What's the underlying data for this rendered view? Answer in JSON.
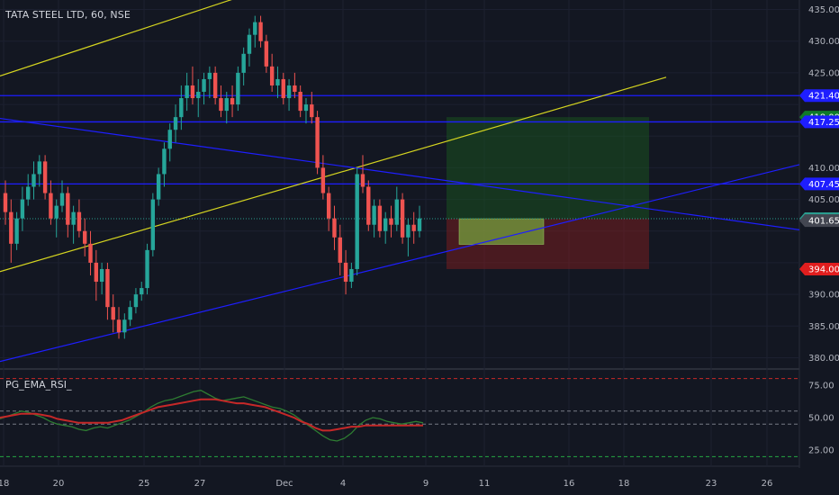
{
  "header": {
    "title": "TATA STEEL LTD, 60, NSE"
  },
  "indicator": {
    "title": "PG_EMA_RSI_"
  },
  "chart_data": {
    "type": "candlestick",
    "symbol": "TATA STEEL LTD",
    "interval": "60",
    "exchange": "NSE",
    "price_axis": {
      "ticks": [
        "435.00",
        "430.00",
        "425.00",
        "410.00",
        "405.00",
        "390.00",
        "385.00",
        "380.00"
      ],
      "range": [
        378.5,
        436.5
      ]
    },
    "price_tags": [
      {
        "label": "421.40",
        "value": 421.4,
        "bg": "#1e1eff",
        "fg": "#ffffff"
      },
      {
        "label": "418.00",
        "value": 418.0,
        "bg": "#0f7a2a",
        "fg": "#ffffff"
      },
      {
        "label": "417.25",
        "value": 417.25,
        "bg": "#1e1eff",
        "fg": "#ffffff"
      },
      {
        "label": "407.45",
        "value": 407.45,
        "bg": "#1e1eff",
        "fg": "#ffffff"
      },
      {
        "label": "401.95",
        "value": 401.95,
        "bg": "#2a9d8f",
        "fg": "#ffffff"
      },
      {
        "label": "401.65",
        "value": 401.65,
        "bg": "#434651",
        "fg": "#ffffff"
      },
      {
        "label": "394.00",
        "value": 394.0,
        "bg": "#e01e1e",
        "fg": "#ffffff"
      }
    ],
    "date_axis": {
      "ticks": [
        "18",
        "20",
        "25",
        "27",
        "Dec",
        "4",
        "9",
        "11",
        "16",
        "18",
        "23",
        "26"
      ]
    },
    "horizontal_lines": [
      421.4,
      417.25,
      407.45
    ],
    "current_price": 401.95,
    "position": {
      "entry": 401.95,
      "target": 418.0,
      "stop": 394.0
    },
    "indicator_axis": {
      "ticks": [
        "75.00",
        "50.00",
        "25.00"
      ],
      "range": [
        14,
        86
      ]
    },
    "indicator_levels": [
      {
        "value": 80,
        "color": "#c62828"
      },
      {
        "value": 55,
        "color": "#787b86"
      },
      {
        "value": 45,
        "color": "#787b86"
      },
      {
        "value": 20,
        "color": "#26a642"
      }
    ],
    "colors": {
      "up": "#26a69a",
      "down": "#ef5350",
      "rsi": "#2e7d32",
      "ema": "#c62828",
      "trend": "#1e1eff",
      "channel": "#d4d420"
    },
    "candles": [
      [
        406,
        408,
        401,
        403
      ],
      [
        403,
        405,
        395,
        398
      ],
      [
        398,
        403,
        397,
        402
      ],
      [
        402,
        407,
        400,
        405
      ],
      [
        405,
        409,
        404,
        407
      ],
      [
        407,
        411,
        405,
        409
      ],
      [
        409,
        412,
        407,
        411
      ],
      [
        411,
        412,
        405,
        406
      ],
      [
        406,
        408,
        401,
        402
      ],
      [
        402,
        405,
        399,
        404
      ],
      [
        404,
        408,
        403,
        406
      ],
      [
        406,
        407,
        399,
        401
      ],
      [
        401,
        404,
        398,
        403
      ],
      [
        403,
        405,
        399,
        400
      ],
      [
        400,
        402,
        396,
        398
      ],
      [
        398,
        400,
        393,
        395
      ],
      [
        395,
        397,
        389,
        392
      ],
      [
        392,
        395,
        390,
        394
      ],
      [
        394,
        395,
        386,
        388
      ],
      [
        388,
        390,
        384,
        386
      ],
      [
        386,
        388,
        383,
        384
      ],
      [
        384,
        387,
        383,
        386
      ],
      [
        386,
        389,
        385,
        388
      ],
      [
        388,
        391,
        387,
        390
      ],
      [
        390,
        392,
        389,
        391
      ],
      [
        391,
        398,
        390,
        397
      ],
      [
        397,
        406,
        396,
        405
      ],
      [
        405,
        410,
        404,
        409
      ],
      [
        409,
        414,
        407,
        413
      ],
      [
        413,
        417,
        411,
        416
      ],
      [
        416,
        420,
        414,
        418
      ],
      [
        418,
        423,
        416,
        421
      ],
      [
        421,
        425,
        419,
        423
      ],
      [
        423,
        426,
        420,
        421
      ],
      [
        421,
        424,
        418,
        422
      ],
      [
        422,
        425,
        420,
        424
      ],
      [
        424,
        426,
        421,
        425
      ],
      [
        425,
        426,
        420,
        421
      ],
      [
        421,
        423,
        418,
        419
      ],
      [
        419,
        422,
        417,
        421
      ],
      [
        421,
        423,
        418,
        420
      ],
      [
        420,
        426,
        419,
        425
      ],
      [
        425,
        429,
        423,
        428
      ],
      [
        428,
        432,
        426,
        431
      ],
      [
        431,
        434,
        429,
        433
      ],
      [
        433,
        434,
        429,
        430
      ],
      [
        430,
        431,
        425,
        426
      ],
      [
        426,
        428,
        422,
        423
      ],
      [
        423,
        426,
        421,
        424
      ],
      [
        424,
        425,
        420,
        421
      ],
      [
        421,
        424,
        419,
        423
      ],
      [
        423,
        425,
        421,
        422
      ],
      [
        422,
        423,
        418,
        419
      ],
      [
        419,
        421,
        417,
        420
      ],
      [
        420,
        422,
        417,
        418
      ],
      [
        418,
        419,
        409,
        410
      ],
      [
        410,
        412,
        405,
        406
      ],
      [
        406,
        407,
        400,
        402
      ],
      [
        402,
        404,
        397,
        399
      ],
      [
        399,
        401,
        393,
        395
      ],
      [
        395,
        397,
        390,
        392
      ],
      [
        392,
        395,
        391,
        394
      ],
      [
        394,
        410,
        393,
        409
      ],
      [
        409,
        412,
        406,
        407
      ],
      [
        407,
        408,
        400,
        401
      ],
      [
        401,
        405,
        399,
        404
      ],
      [
        404,
        405,
        399,
        400
      ],
      [
        400,
        403,
        398,
        402
      ],
      [
        402,
        404,
        399,
        401
      ],
      [
        401,
        407,
        400,
        405
      ],
      [
        405,
        406,
        398,
        399
      ],
      [
        399,
        402,
        396,
        401
      ],
      [
        401,
        403,
        398,
        400
      ],
      [
        400,
        404,
        399,
        402
      ]
    ],
    "rsi": [
      49,
      51,
      53,
      55,
      54,
      52,
      50,
      47,
      45,
      44,
      43,
      41,
      40,
      42,
      43,
      42,
      44,
      46,
      48,
      51,
      54,
      58,
      61,
      63,
      64,
      66,
      68,
      70,
      71,
      68,
      65,
      63,
      64,
      65,
      66,
      64,
      62,
      60,
      58,
      57,
      55,
      52,
      48,
      44,
      40,
      36,
      33,
      32,
      34,
      38,
      44,
      48,
      50,
      49,
      47,
      46,
      45,
      46,
      47,
      46
    ],
    "ema": [
      50,
      51,
      52,
      53,
      53,
      53,
      52,
      51,
      49,
      48,
      47,
      46,
      46,
      46,
      46,
      46,
      47,
      48,
      50,
      52,
      54,
      56,
      58,
      59,
      60,
      61,
      62,
      63,
      64,
      64,
      64,
      63,
      62,
      61,
      61,
      60,
      59,
      58,
      56,
      54,
      52,
      50,
      47,
      45,
      42,
      40,
      40,
      41,
      42,
      43,
      43,
      44,
      44,
      44,
      44,
      44,
      44,
      44,
      44,
      44
    ]
  }
}
